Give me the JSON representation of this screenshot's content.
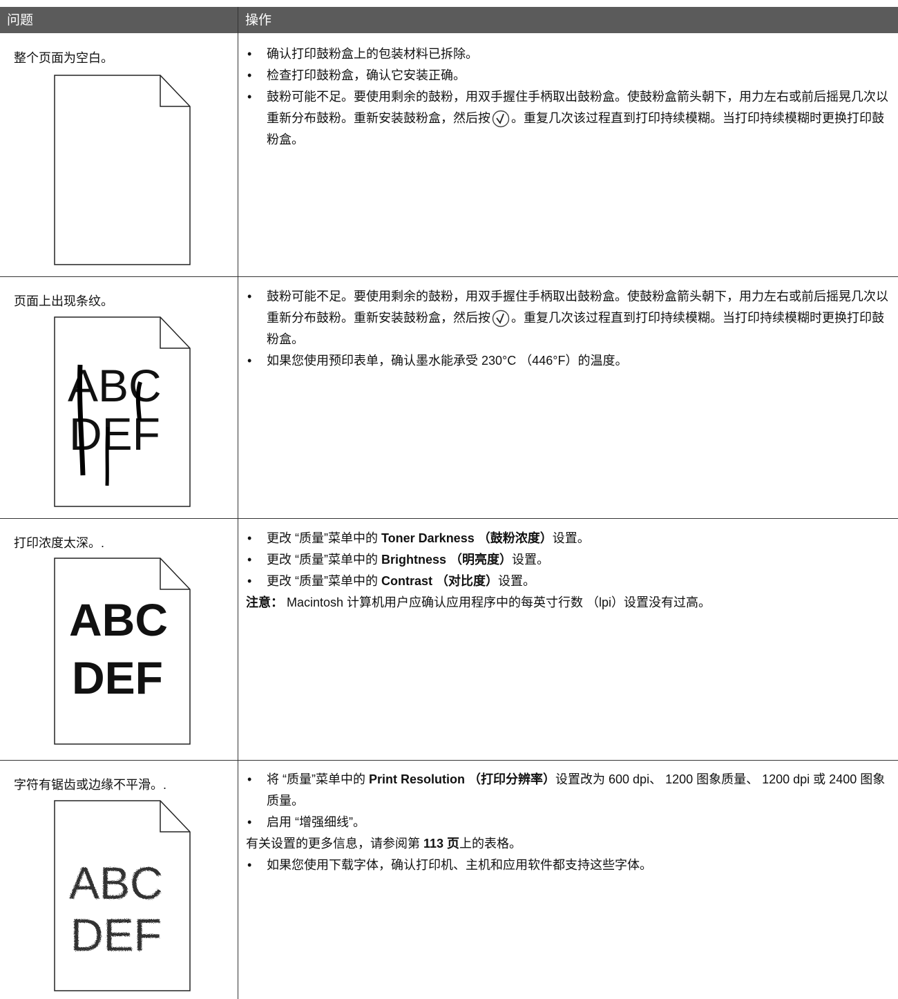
{
  "table": {
    "header": [
      "问题",
      "操作"
    ],
    "rows": [
      {
        "problem": "整个页面为空白。",
        "actions": [
          [
            "确认打印鼓粉盒上的包装材料已拆除。"
          ],
          [
            "检查打印鼓粉盒，确认它安装正确。"
          ],
          [
            "鼓粉可能不足。要使用剩余的鼓粉，用双手握住手柄取出鼓粉盒。使鼓粉盒箭头朝下，用力左右或前后摇晃几次以重新分布鼓粉。重新安装鼓粉盒，然后按",
            "。重复几次该过程直到打印持续模糊。当打印持续模糊时更换打印鼓粉盒。"
          ]
        ]
      },
      {
        "problem": "页面上出现条纹。",
        "sample": [
          "ABC",
          "DEF"
        ],
        "actions": [
          [
            "鼓粉可能不足。要使用剩余的鼓粉，用双手握住手柄取出鼓粉盒。使鼓粉盒箭头朝下，用力左右或前后摇晃几次以重新分布鼓粉。重新安装鼓粉盒，然后按",
            "。重复几次该过程直到打印持续模糊。当打印持续模糊时更换打印鼓粉盒。"
          ],
          [
            "如果您使用预印表单，确认墨水能承受 230°C （446°F）的温度。"
          ]
        ]
      },
      {
        "problem": "打印浓度太深。.",
        "sample": [
          "ABC",
          "DEF"
        ],
        "actions": [
          [
            "更改 “质量”菜单中的 ",
            "Toner Darkness",
            " （鼓粉浓度）",
            "设置。"
          ],
          [
            "更改 “质量”菜单中的 ",
            "Brightness",
            " （明亮度）",
            "设置。"
          ],
          [
            "更改 “质量”菜单中的 ",
            "Contrast",
            " （对比度）",
            "设置。"
          ],
          [
            "注意：",
            " Macintosh 计算机用户应确认应用程序中的每英寸行数 （lpi）设置没有过高。"
          ]
        ]
      },
      {
        "problem": "字符有锯齿或边缘不平滑。.",
        "sample": [
          "ABC",
          "DEF"
        ],
        "actions": [
          [
            "将 “质量”菜单中的 ",
            "Print Resolution",
            " （打印分辨率）",
            "设置改为 600 dpi、 1200 图象质量、 1200 dpi 或 2400 图象质量。"
          ],
          [
            "启用 “增强细线”。"
          ],
          [
            "有关设置的更多信息，请参阅第 ",
            "113 页",
            "上的表格。"
          ],
          [
            "如果您使用下载字体，确认打印机、主机和应用软件都支持这些字体。"
          ]
        ]
      }
    ]
  }
}
